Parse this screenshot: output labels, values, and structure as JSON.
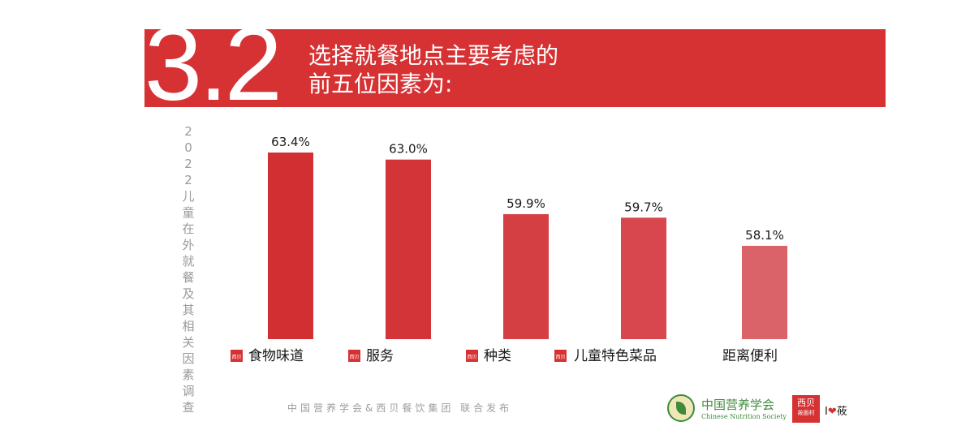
{
  "header": {
    "number": "3.2",
    "title_line1": "选择就餐地点主要考虑的",
    "title_line2": "前五位因素为:"
  },
  "side_title": "2022儿童在外就餐及其相关因素调查",
  "footer": {
    "publisher_text": "中国营养学会&西贝餐饮集团  联合发布",
    "cns_name_cn": "中国营养学会",
    "cns_name_en": "Chinese Nutrition Society",
    "xibei_logo_text": "西贝",
    "xibei_logo_sub": "莜面村",
    "ilove_i": "I",
    "ilove_heart": "❤",
    "ilove_text": "莜"
  },
  "colors": {
    "brand_red": "#d63234",
    "bar_colors": [
      "#d12f31",
      "#d23437",
      "#d43f43",
      "#d7474d",
      "#d96369"
    ]
  },
  "chart_data": {
    "type": "bar",
    "title": "选择就餐地点主要考虑的前五位因素为:",
    "categories": [
      "食物味道",
      "服务",
      "种类",
      "儿童特色菜品",
      "距离便利"
    ],
    "values": [
      63.4,
      63.0,
      59.9,
      59.7,
      58.1
    ],
    "value_labels": [
      "63.4%",
      "63.0%",
      "59.9%",
      "59.7%",
      "58.1%"
    ],
    "category_badges": [
      true,
      true,
      true,
      true,
      false
    ],
    "badge_text": "西贝",
    "unit": "%",
    "ylim": [
      52.8,
      63.4
    ],
    "grid": false,
    "legend": "none"
  }
}
